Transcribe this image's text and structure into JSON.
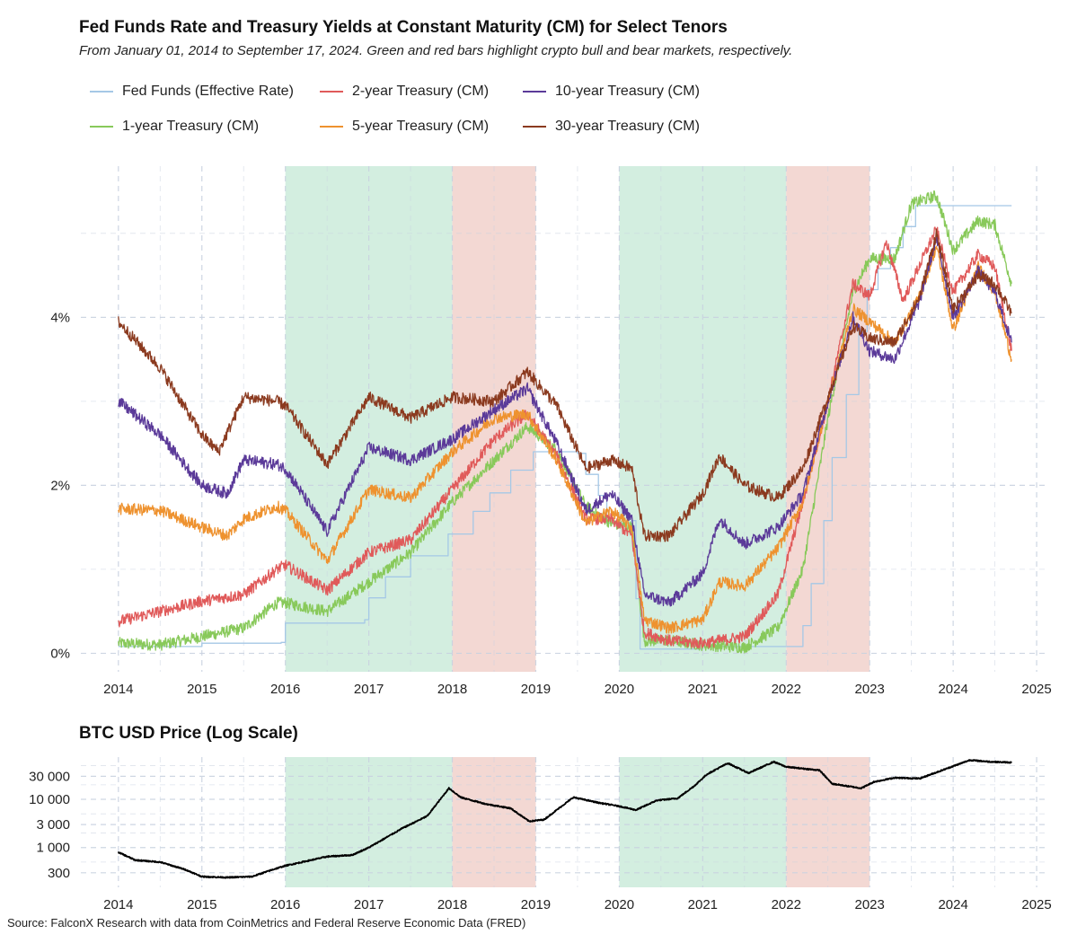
{
  "title": "Fed Funds Rate and Treasury Yields at Constant Maturity (CM) for Select Tenors",
  "subtitle": "From January 01, 2014 to September 17, 2024. Green and red bars highlight crypto bull and bear markets, respectively.",
  "source": "Source: FalconX Research with data from CoinMetrics and Federal Reserve Economic Data (FRED)",
  "colors": {
    "bull": "#d3eee0",
    "bear": "#f3d8d3",
    "grid": "#c9d2e0"
  },
  "chart_data": [
    {
      "type": "line",
      "title": "",
      "xlabel": "",
      "ylabel": "",
      "xlim": [
        2013.55,
        2025.15
      ],
      "ylim": [
        -0.22,
        5.8
      ],
      "x_ticks": [
        2014,
        2015,
        2016,
        2017,
        2018,
        2019,
        2020,
        2021,
        2022,
        2023,
        2024,
        2025
      ],
      "x_tick_labels": [
        "2014",
        "2015",
        "2016",
        "2017",
        "2018",
        "2019",
        "2020",
        "2021",
        "2022",
        "2023",
        "2024",
        "2025"
      ],
      "y_ticks": [
        0,
        2,
        4
      ],
      "y_tick_labels": [
        "0%",
        "2%",
        "4%"
      ],
      "grid": true,
      "legend": "top",
      "highlights": [
        {
          "kind": "bull",
          "from": 2016.0,
          "to": 2018.0
        },
        {
          "kind": "bear",
          "from": 2018.0,
          "to": 2019.0
        },
        {
          "kind": "bull",
          "from": 2020.0,
          "to": 2022.0
        },
        {
          "kind": "bear",
          "from": 2022.0,
          "to": 2023.0
        }
      ],
      "series": [
        {
          "name": "Fed Funds (Effective Rate)",
          "color": "#a5c8e6",
          "x": [
            2014.0,
            2015.0,
            2015.95,
            2016.0,
            2016.95,
            2017.0,
            2017.2,
            2017.5,
            2017.95,
            2018.25,
            2018.45,
            2018.7,
            2018.97,
            2019.5,
            2019.6,
            2019.75,
            2019.85,
            2020.15,
            2020.2,
            2020.25,
            2021.0,
            2022.0,
            2022.2,
            2022.3,
            2022.45,
            2022.55,
            2022.72,
            2022.87,
            2022.97,
            2023.1,
            2023.25,
            2023.4,
            2023.55,
            2024.0,
            2024.7
          ],
          "y": [
            0.08,
            0.12,
            0.13,
            0.36,
            0.4,
            0.66,
            0.91,
            1.16,
            1.42,
            1.69,
            1.91,
            2.18,
            2.4,
            2.38,
            2.13,
            1.88,
            1.55,
            1.58,
            0.65,
            0.05,
            0.08,
            0.08,
            0.33,
            0.83,
            1.58,
            2.33,
            3.08,
            3.83,
            4.33,
            4.58,
            4.83,
            5.08,
            5.33,
            5.33,
            5.33
          ]
        },
        {
          "name": "1-year Treasury (CM)",
          "color": "#88c95a",
          "x": [
            2014.0,
            2014.5,
            2015.0,
            2015.5,
            2015.9,
            2016.0,
            2016.5,
            2017.0,
            2017.5,
            2018.0,
            2018.5,
            2018.9,
            2019.25,
            2019.6,
            2019.9,
            2020.15,
            2020.3,
            2020.6,
            2021.0,
            2021.5,
            2021.9,
            2022.2,
            2022.5,
            2022.8,
            2023.0,
            2023.3,
            2023.5,
            2023.8,
            2024.0,
            2024.3,
            2024.5,
            2024.7
          ],
          "y": [
            0.12,
            0.1,
            0.2,
            0.3,
            0.6,
            0.6,
            0.5,
            0.85,
            1.2,
            1.8,
            2.3,
            2.7,
            2.42,
            1.75,
            1.55,
            1.5,
            0.15,
            0.15,
            0.1,
            0.07,
            0.3,
            1.0,
            2.8,
            4.3,
            4.7,
            4.7,
            5.35,
            5.45,
            4.8,
            5.15,
            5.1,
            4.4
          ]
        },
        {
          "name": "2-year Treasury (CM)",
          "color": "#e05a5a",
          "x": [
            2014.0,
            2014.5,
            2015.0,
            2015.5,
            2015.9,
            2016.0,
            2016.5,
            2017.0,
            2017.5,
            2018.0,
            2018.5,
            2018.9,
            2019.25,
            2019.6,
            2019.9,
            2020.15,
            2020.3,
            2020.6,
            2021.0,
            2021.5,
            2021.9,
            2022.2,
            2022.5,
            2022.8,
            2023.0,
            2023.2,
            2023.4,
            2023.8,
            2024.0,
            2024.3,
            2024.5,
            2024.7
          ],
          "y": [
            0.38,
            0.5,
            0.62,
            0.7,
            1.0,
            1.05,
            0.75,
            1.2,
            1.35,
            1.95,
            2.55,
            2.85,
            2.35,
            1.6,
            1.6,
            1.4,
            0.25,
            0.15,
            0.12,
            0.2,
            0.7,
            1.8,
            3.0,
            4.4,
            4.25,
            4.9,
            4.2,
            5.05,
            4.3,
            4.75,
            4.6,
            3.6
          ]
        },
        {
          "name": "5-year Treasury (CM)",
          "color": "#ee922f",
          "x": [
            2014.0,
            2014.5,
            2015.0,
            2015.3,
            2015.5,
            2015.9,
            2016.0,
            2016.5,
            2017.0,
            2017.5,
            2018.0,
            2018.5,
            2018.9,
            2019.25,
            2019.6,
            2019.9,
            2020.15,
            2020.3,
            2020.6,
            2021.0,
            2021.2,
            2021.5,
            2021.9,
            2022.2,
            2022.5,
            2022.8,
            2023.0,
            2023.3,
            2023.6,
            2023.8,
            2024.0,
            2024.3,
            2024.5,
            2024.7
          ],
          "y": [
            1.72,
            1.7,
            1.5,
            1.4,
            1.6,
            1.75,
            1.7,
            1.1,
            1.95,
            1.85,
            2.4,
            2.8,
            2.85,
            2.3,
            1.55,
            1.7,
            1.5,
            0.4,
            0.3,
            0.4,
            0.85,
            0.8,
            1.25,
            1.8,
            3.0,
            4.1,
            3.95,
            3.7,
            4.25,
            4.85,
            3.85,
            4.6,
            4.3,
            3.5
          ]
        },
        {
          "name": "10-year Treasury (CM)",
          "color": "#5b3a99",
          "x": [
            2014.0,
            2014.5,
            2015.0,
            2015.3,
            2015.5,
            2015.9,
            2016.0,
            2016.5,
            2017.0,
            2017.5,
            2018.0,
            2018.5,
            2018.9,
            2019.25,
            2019.6,
            2019.9,
            2020.15,
            2020.3,
            2020.6,
            2021.0,
            2021.2,
            2021.5,
            2021.9,
            2022.2,
            2022.5,
            2022.8,
            2023.0,
            2023.3,
            2023.6,
            2023.8,
            2024.0,
            2024.3,
            2024.5,
            2024.7
          ],
          "y": [
            3.0,
            2.6,
            2.0,
            1.9,
            2.3,
            2.25,
            2.2,
            1.45,
            2.45,
            2.3,
            2.55,
            2.9,
            3.15,
            2.5,
            1.7,
            1.9,
            1.6,
            0.7,
            0.6,
            0.95,
            1.6,
            1.3,
            1.5,
            1.9,
            3.0,
            4.0,
            3.6,
            3.5,
            4.2,
            4.95,
            4.0,
            4.55,
            4.3,
            3.7
          ]
        },
        {
          "name": "30-year Treasury (CM)",
          "color": "#8b3a1f",
          "x": [
            2014.0,
            2014.5,
            2015.0,
            2015.2,
            2015.5,
            2015.9,
            2016.0,
            2016.5,
            2017.0,
            2017.5,
            2018.0,
            2018.5,
            2018.9,
            2019.25,
            2019.6,
            2019.9,
            2020.15,
            2020.3,
            2020.6,
            2021.0,
            2021.2,
            2021.5,
            2021.9,
            2022.2,
            2022.5,
            2022.8,
            2023.0,
            2023.3,
            2023.6,
            2023.8,
            2024.0,
            2024.3,
            2024.5,
            2024.7
          ],
          "y": [
            3.95,
            3.4,
            2.6,
            2.4,
            3.05,
            3.0,
            2.95,
            2.25,
            3.05,
            2.8,
            3.05,
            3.0,
            3.35,
            2.95,
            2.2,
            2.3,
            2.2,
            1.4,
            1.4,
            1.9,
            2.35,
            2.0,
            1.85,
            2.2,
            3.05,
            3.9,
            3.75,
            3.7,
            4.25,
            5.0,
            4.1,
            4.5,
            4.4,
            4.05
          ]
        }
      ]
    },
    {
      "type": "line",
      "title": "BTC USD Price (Log Scale)",
      "xlabel": "",
      "ylabel": "",
      "scale": "log",
      "xlim": [
        2013.55,
        2025.15
      ],
      "ylim": [
        150,
        75000
      ],
      "x_ticks": [
        2014,
        2015,
        2016,
        2017,
        2018,
        2019,
        2020,
        2021,
        2022,
        2023,
        2024,
        2025
      ],
      "x_tick_labels": [
        "2014",
        "2015",
        "2016",
        "2017",
        "2018",
        "2019",
        "2020",
        "2021",
        "2022",
        "2023",
        "2024",
        "2025"
      ],
      "y_ticks": [
        300,
        1000,
        3000,
        10000,
        30000
      ],
      "y_tick_labels": [
        "300",
        "1 000",
        "3 000",
        "10 000",
        "30 000"
      ],
      "grid": true,
      "highlights": [
        {
          "kind": "bull",
          "from": 2016.0,
          "to": 2018.0
        },
        {
          "kind": "bear",
          "from": 2018.0,
          "to": 2019.0
        },
        {
          "kind": "bull",
          "from": 2020.0,
          "to": 2022.0
        },
        {
          "kind": "bear",
          "from": 2022.0,
          "to": 2023.0
        }
      ],
      "series": [
        {
          "color": "#000000",
          "x": [
            2014.0,
            2014.2,
            2014.5,
            2014.8,
            2015.0,
            2015.3,
            2015.6,
            2015.85,
            2016.0,
            2016.5,
            2016.8,
            2017.0,
            2017.4,
            2017.7,
            2017.96,
            2018.1,
            2018.4,
            2018.7,
            2018.92,
            2019.1,
            2019.45,
            2019.75,
            2020.0,
            2020.2,
            2020.45,
            2020.7,
            2020.9,
            2021.05,
            2021.3,
            2021.55,
            2021.85,
            2022.0,
            2022.4,
            2022.55,
            2022.9,
            2023.05,
            2023.3,
            2023.6,
            2023.9,
            2024.2,
            2024.45,
            2024.7
          ],
          "y": [
            800,
            550,
            500,
            350,
            250,
            240,
            250,
            350,
            420,
            650,
            700,
            1000,
            2500,
            4500,
            17000,
            11000,
            8000,
            6500,
            3500,
            3800,
            11000,
            8500,
            7200,
            6000,
            9500,
            10500,
            19000,
            33000,
            56000,
            35000,
            60000,
            47000,
            40000,
            21000,
            17000,
            23000,
            28000,
            27000,
            42000,
            65000,
            60000,
            58000
          ]
        }
      ]
    }
  ]
}
